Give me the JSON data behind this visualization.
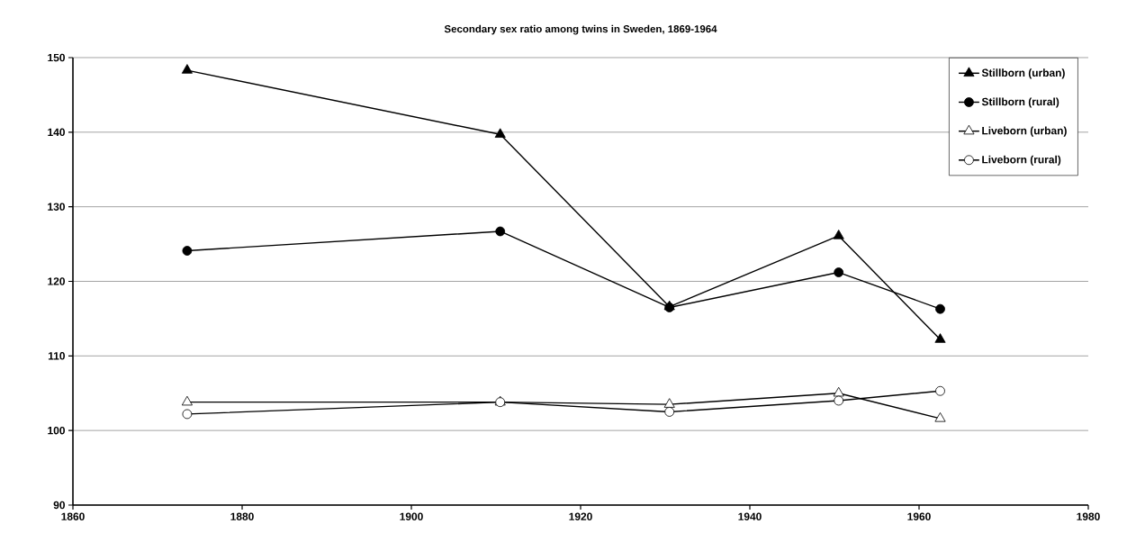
{
  "chart_data": {
    "type": "line",
    "title": "Secondary sex ratio among twins in Sweden, 1869-1964",
    "x": [
      1873.5,
      1910.5,
      1930.5,
      1950.5,
      1962.5
    ],
    "series": [
      {
        "name": "Stillborn (urban)",
        "color": "#000000",
        "marker": "triangle",
        "values": [
          148.3,
          139.7,
          116.6,
          126.1,
          112.2
        ]
      },
      {
        "name": "Stillborn (rural)",
        "color": "#000000",
        "marker": "circle",
        "values": [
          124.1,
          126.7,
          116.5,
          121.2,
          116.3
        ]
      },
      {
        "name": "Liveborn (urban)",
        "color": "#000000",
        "marker": "triangle",
        "colors": [
          "#ffffff",
          "#ffffff",
          "#ffffff",
          "#ffffff",
          "#ffffff"
        ],
        "values": [
          103.8,
          103.8,
          103.5,
          105.0,
          101.6
        ]
      },
      {
        "name": "Liveborn (rural)",
        "color": "#000000",
        "marker": "circle",
        "colors": [
          "#ffffff",
          "#ffffff",
          "#ffffff",
          "#ffffff",
          "#ffffff"
        ],
        "values": [
          102.2,
          103.8,
          102.5,
          104.0,
          105.3
        ]
      }
    ],
    "xlim": [
      1860,
      1980
    ],
    "xticks": [
      1860,
      1880,
      1900,
      1920,
      1940,
      1960,
      1980
    ],
    "ylim": [
      90,
      150
    ],
    "yticks": [
      90,
      100,
      110,
      120,
      130,
      140,
      150
    ],
    "grid": "y",
    "legend": "top right",
    "line_style": "solid"
  }
}
